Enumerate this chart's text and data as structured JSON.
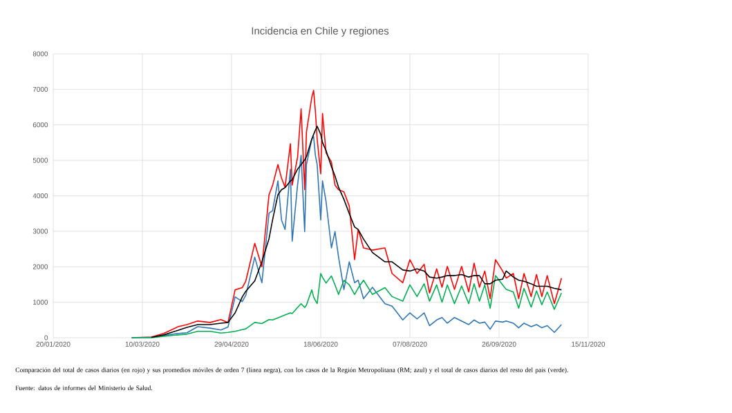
{
  "chart_data": {
    "type": "line",
    "title": "Incidencia en Chile y regiones",
    "x": [
      "2020-03-04",
      "2020-03-15",
      "2020-03-22",
      "2020-03-30",
      "2020-04-04",
      "2020-04-10",
      "2020-04-17",
      "2020-04-23",
      "2020-04-27",
      "2020-05-01",
      "2020-05-05",
      "2020-05-07",
      "2020-05-12",
      "2020-05-16",
      "2020-05-20",
      "2020-05-22",
      "2020-05-25",
      "2020-05-27",
      "2020-05-29",
      "2020-06-01",
      "2020-06-02",
      "2020-06-05",
      "2020-06-07",
      "2020-06-09",
      "2020-06-10",
      "2020-06-13",
      "2020-06-14",
      "2020-06-15",
      "2020-06-16",
      "2020-06-18",
      "2020-06-19",
      "2020-06-21",
      "2020-06-24",
      "2020-06-26",
      "2020-06-28",
      "2020-07-01",
      "2020-07-04",
      "2020-07-07",
      "2020-07-09",
      "2020-07-12",
      "2020-07-17",
      "2020-07-24",
      "2020-07-28",
      "2020-08-03",
      "2020-08-07",
      "2020-08-11",
      "2020-08-15",
      "2020-08-18",
      "2020-08-22",
      "2020-08-25",
      "2020-08-28",
      "2020-09-01",
      "2020-09-05",
      "2020-09-09",
      "2020-09-12",
      "2020-09-15",
      "2020-09-18",
      "2020-09-21",
      "2020-09-24",
      "2020-09-28",
      "2020-09-30",
      "2020-10-04",
      "2020-10-07",
      "2020-10-10",
      "2020-10-14",
      "2020-10-17",
      "2020-10-20",
      "2020-10-23",
      "2020-10-27",
      "2020-10-31"
    ],
    "series": [
      {
        "color": "#ff0000",
        "values": [
          0,
          20,
          120,
          310,
          370,
          470,
          430,
          510,
          430,
          1350,
          1410,
          1600,
          2660,
          2000,
          4030,
          4290,
          4880,
          4500,
          4240,
          5470,
          4300,
          5080,
          6450,
          4170,
          5800,
          6780,
          6970,
          6390,
          5600,
          4620,
          6320,
          5210,
          4950,
          4300,
          4170,
          4110,
          3710,
          2200,
          3050,
          2530,
          2470,
          2530,
          1810,
          1550,
          2200,
          1810,
          2070,
          1260,
          1940,
          1420,
          2010,
          1360,
          2010,
          1290,
          2100,
          1420,
          1880,
          1100,
          2200,
          1880,
          1680,
          1810,
          1100,
          1810,
          1160,
          1780,
          1160,
          1750,
          960,
          1680
        ]
      },
      {
        "color": "#2e75b6",
        "values": [
          0,
          10,
          60,
          120,
          140,
          310,
          270,
          220,
          300,
          1150,
          1020,
          1200,
          2270,
          1550,
          3510,
          3580,
          4420,
          3320,
          3050,
          4750,
          2720,
          4300,
          5140,
          2990,
          4880,
          5600,
          5670,
          5140,
          4880,
          3320,
          4420,
          3830,
          2530,
          2990,
          2270,
          1360,
          2140,
          1550,
          1620,
          1100,
          1420,
          960,
          890,
          500,
          700,
          530,
          700,
          340,
          500,
          570,
          410,
          570,
          470,
          370,
          500,
          410,
          440,
          240,
          470,
          440,
          470,
          410,
          280,
          410,
          310,
          370,
          280,
          340,
          150,
          370
        ]
      },
      {
        "color": "#00b050",
        "values": [
          0,
          0,
          40,
          80,
          100,
          180,
          180,
          130,
          150,
          180,
          230,
          250,
          430,
          400,
          510,
          500,
          560,
          600,
          640,
          700,
          680,
          850,
          960,
          850,
          920,
          1350,
          1150,
          1050,
          960,
          1810,
          1700,
          1540,
          1740,
          1490,
          1220,
          1620,
          1490,
          1220,
          1400,
          1620,
          1220,
          1410,
          1160,
          1030,
          1490,
          1160,
          1520,
          1030,
          1490,
          1000,
          1490,
          960,
          1460,
          960,
          1520,
          1030,
          1490,
          830,
          1750,
          1490,
          1360,
          1290,
          830,
          1390,
          860,
          1320,
          930,
          1290,
          800,
          1260
        ]
      },
      {
        "color": "#000000",
        "values": [
          null,
          10,
          80,
          210,
          290,
          370,
          370,
          410,
          430,
          700,
          1150,
          1310,
          1600,
          2140,
          2790,
          3320,
          4030,
          4170,
          4230,
          4420,
          4450,
          4750,
          4880,
          5010,
          5100,
          5600,
          5730,
          5850,
          5960,
          5730,
          5500,
          5270,
          4820,
          4560,
          4240,
          3900,
          3500,
          3120,
          3050,
          2780,
          2400,
          2140,
          2140,
          1910,
          1880,
          1940,
          1880,
          1710,
          1680,
          1710,
          1750,
          1750,
          1780,
          1710,
          1750,
          1750,
          1520,
          1520,
          1620,
          1650,
          1880,
          1710,
          1620,
          1590,
          1520,
          1450,
          1450,
          1450,
          1390,
          1350
        ]
      }
    ],
    "xlim": [
      "2020-01-20",
      "2020-11-15"
    ],
    "xticks": [
      {
        "value": "2020-01-20",
        "label": "20/01/2020"
      },
      {
        "value": "2020-03-10",
        "label": "10/03/2020"
      },
      {
        "value": "2020-04-29",
        "label": "29/04/2020"
      },
      {
        "value": "2020-06-18",
        "label": "18/06/2020"
      },
      {
        "value": "2020-08-07",
        "label": "07/08/2020"
      },
      {
        "value": "2020-09-26",
        "label": "26/09/2020"
      },
      {
        "value": "2020-11-15",
        "label": "15/11/2020"
      }
    ],
    "ylim": [
      0,
      8000
    ],
    "yticks": [
      0,
      1000,
      2000,
      3000,
      4000,
      5000,
      6000,
      7000,
      8000
    ],
    "grid": true,
    "annotations": [
      "Comparación del total de casos diarios (en rojo) y sus promedios móviles de orden 7 (línea negra), con los casos de la Región Metropolitana (RM; azul) y el total de casos diarios del resto del país (verde).",
      "Fuente: datos de informes del Ministerio de Salud."
    ]
  }
}
